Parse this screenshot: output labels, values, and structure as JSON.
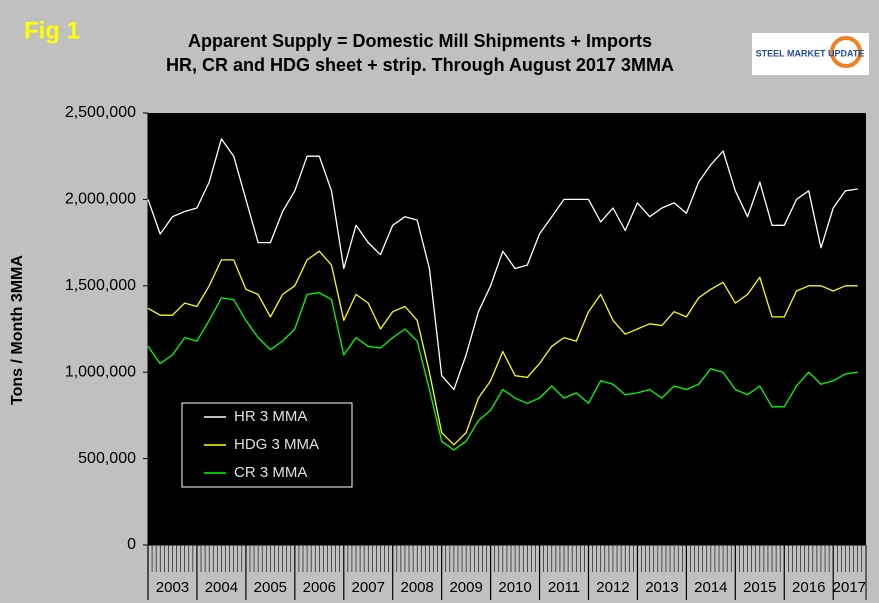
{
  "figure_label": "Fig 1",
  "logo_text": "STEEL MARKET UPDATE",
  "chart_data": {
    "type": "line",
    "title": "Apparent Supply = Domestic Mill Shipments + Imports",
    "subtitle": "HR, CR and HDG sheet + strip. Through August 2017 3MMA",
    "y_label": "Tons / Month 3MMA",
    "xlim": [
      2003,
      2017.67
    ],
    "xticks": [
      {
        "value": 2003.5,
        "label": "2003"
      },
      {
        "value": 2004.5,
        "label": "2004"
      },
      {
        "value": 2005.5,
        "label": "2005"
      },
      {
        "value": 2006.5,
        "label": "2006"
      },
      {
        "value": 2007.5,
        "label": "2007"
      },
      {
        "value": 2008.5,
        "label": "2008"
      },
      {
        "value": 2009.5,
        "label": "2009"
      },
      {
        "value": 2010.5,
        "label": "2010"
      },
      {
        "value": 2011.5,
        "label": "2011"
      },
      {
        "value": 2012.5,
        "label": "2012"
      },
      {
        "value": 2013.5,
        "label": "2013"
      },
      {
        "value": 2014.5,
        "label": "2014"
      },
      {
        "value": 2015.5,
        "label": "2015"
      },
      {
        "value": 2016.5,
        "label": "2016"
      },
      {
        "value": 2017.33,
        "label": "2017"
      }
    ],
    "ylim": [
      0,
      2500000
    ],
    "yticks": [
      0,
      {
        "value": 500000,
        "label": "500,000"
      },
      {
        "value": 1000000,
        "label": "1,000,000"
      },
      {
        "value": 1500000,
        "label": "1,500,000"
      },
      {
        "value": 2000000,
        "label": "2,000,000"
      },
      {
        "value": 2500000,
        "label": "2,500,000"
      }
    ],
    "x": [
      2003,
      2003.25,
      2003.5,
      2003.75,
      2004,
      2004.25,
      2004.5,
      2004.75,
      2005,
      2005.25,
      2005.5,
      2005.75,
      2006,
      2006.25,
      2006.5,
      2006.75,
      2007,
      2007.25,
      2007.5,
      2007.75,
      2008,
      2008.25,
      2008.5,
      2008.75,
      2009,
      2009.25,
      2009.5,
      2009.75,
      2010,
      2010.25,
      2010.5,
      2010.75,
      2011,
      2011.25,
      2011.5,
      2011.75,
      2012,
      2012.25,
      2012.5,
      2012.75,
      2013,
      2013.25,
      2013.5,
      2013.75,
      2014,
      2014.25,
      2014.5,
      2014.75,
      2015,
      2015.25,
      2015.5,
      2015.75,
      2016,
      2016.25,
      2016.5,
      2016.75,
      2017,
      2017.25,
      2017.5
    ],
    "series": [
      {
        "name": "HR 3 MMA",
        "color": "#ffffff",
        "values": [
          2000000,
          1800000,
          1900000,
          1930000,
          1950000,
          2100000,
          2350000,
          2250000,
          2000000,
          1750000,
          1750000,
          1930000,
          2050000,
          2250000,
          2250000,
          2050000,
          1600000,
          1850000,
          1750000,
          1680000,
          1850000,
          1900000,
          1880000,
          1600000,
          980000,
          900000,
          1100000,
          1350000,
          1500000,
          1700000,
          1600000,
          1620000,
          1800000,
          1900000,
          2000000,
          2000000,
          2000000,
          1870000,
          1950000,
          1820000,
          1980000,
          1900000,
          1950000,
          1980000,
          1920000,
          2100000,
          2200000,
          2280000,
          2050000,
          1900000,
          2100000,
          1850000,
          1850000,
          2000000,
          2050000,
          1720000,
          1950000,
          2050000,
          2060000
        ]
      },
      {
        "name": "HDG 3 MMA",
        "color": "#ffff00",
        "values": [
          1370000,
          1330000,
          1330000,
          1400000,
          1380000,
          1500000,
          1650000,
          1650000,
          1480000,
          1450000,
          1320000,
          1450000,
          1500000,
          1650000,
          1700000,
          1620000,
          1300000,
          1450000,
          1400000,
          1250000,
          1350000,
          1380000,
          1300000,
          1000000,
          650000,
          580000,
          650000,
          850000,
          950000,
          1120000,
          980000,
          970000,
          1050000,
          1150000,
          1200000,
          1180000,
          1350000,
          1450000,
          1300000,
          1220000,
          1250000,
          1280000,
          1270000,
          1350000,
          1320000,
          1430000,
          1480000,
          1520000,
          1400000,
          1450000,
          1550000,
          1320000,
          1320000,
          1470000,
          1500000,
          1500000,
          1470000,
          1500000,
          1500000
        ]
      },
      {
        "name": "CR 3 MMA",
        "color": "#00ff00",
        "values": [
          1150000,
          1050000,
          1100000,
          1200000,
          1180000,
          1300000,
          1430000,
          1420000,
          1300000,
          1200000,
          1130000,
          1180000,
          1250000,
          1450000,
          1460000,
          1420000,
          1100000,
          1200000,
          1150000,
          1140000,
          1200000,
          1250000,
          1180000,
          900000,
          600000,
          550000,
          600000,
          720000,
          780000,
          900000,
          850000,
          820000,
          850000,
          920000,
          850000,
          880000,
          820000,
          950000,
          930000,
          870000,
          880000,
          900000,
          850000,
          920000,
          900000,
          930000,
          1020000,
          1000000,
          900000,
          870000,
          920000,
          800000,
          800000,
          920000,
          1000000,
          930000,
          950000,
          990000,
          1000000
        ]
      }
    ]
  }
}
